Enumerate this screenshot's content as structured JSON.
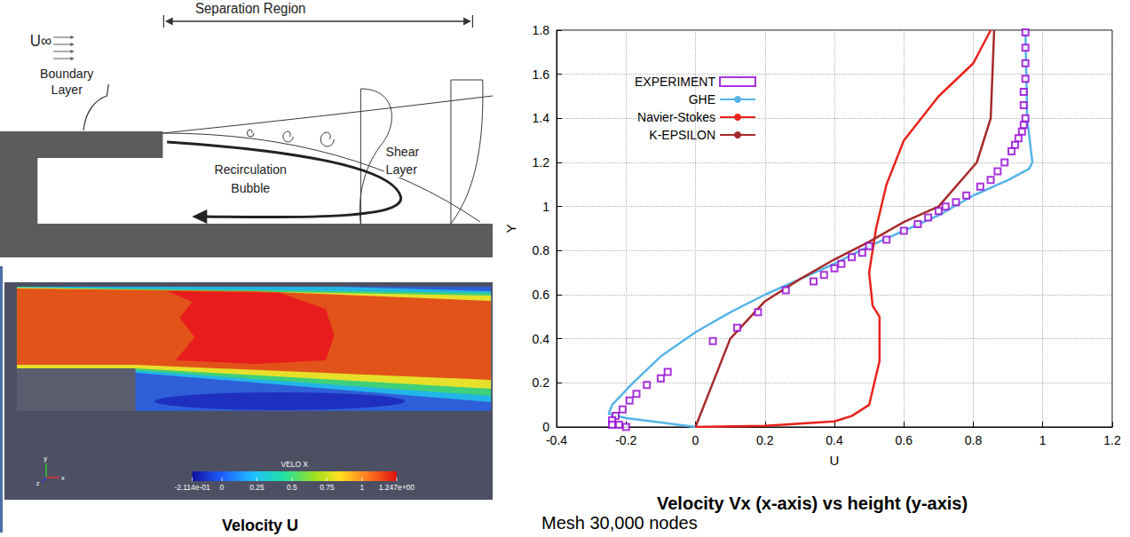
{
  "diagram": {
    "span": "Separation Region",
    "freestream": "U∞",
    "labels": {
      "boundary_layer": "Boundary Layer",
      "shear_layer": "Shear Layer",
      "bubble": "Recirculation Bubble"
    }
  },
  "contour": {
    "title": "VELO X",
    "axes": [
      "y",
      "z",
      "x"
    ],
    "caption": "Velocity U",
    "colorbar": {
      "range": [
        -0.2114,
        1.247
      ],
      "ticks": [
        {
          "value": -0.2114,
          "label": "-2.114e-01"
        },
        0,
        0.25,
        0.5,
        0.75,
        1,
        {
          "value": 1.247,
          "label": "1.247e+00"
        }
      ]
    }
  },
  "mesh_caption": "Mesh 30,000 nodes",
  "chart_data": {
    "type": "line",
    "title": "Velocity Vx (x-axis) vs height (y-axis)",
    "x_label": "U",
    "y_label": "Y",
    "xlim": [
      -0.4,
      1.2
    ],
    "xticks": [
      -0.4,
      -0.2,
      0,
      0.2,
      0.4,
      0.6,
      0.8,
      1,
      1.2
    ],
    "ylim": [
      0,
      1.8
    ],
    "yticks": [
      0,
      0.2,
      0.4,
      0.6,
      0.8,
      1,
      1.2,
      1.4,
      1.6,
      1.8
    ],
    "grid": true,
    "legend": "upper left",
    "series": [
      {
        "name": "EXPERIMENT",
        "type": "scatter",
        "marker": "square",
        "color": "#9400d3",
        "x": [
          0.95,
          0.95,
          0.95,
          0.95,
          0.945,
          0.945,
          0.95,
          0.945,
          0.94,
          0.93,
          0.92,
          0.91,
          0.89,
          0.87,
          0.85,
          0.82,
          0.78,
          0.75,
          0.72,
          0.7,
          0.67,
          0.64,
          0.6,
          0.55,
          0.5,
          0.48,
          0.45,
          0.42,
          0.4,
          0.37,
          0.34,
          0.26,
          0.18,
          0.12,
          0.05,
          -0.08,
          -0.1,
          -0.14,
          -0.17,
          -0.19,
          -0.21,
          -0.23,
          -0.24,
          -0.24,
          -0.22,
          -0.2
        ],
        "y": [
          1.79,
          1.72,
          1.65,
          1.58,
          1.52,
          1.46,
          1.4,
          1.37,
          1.34,
          1.31,
          1.28,
          1.25,
          1.2,
          1.16,
          1.12,
          1.09,
          1.05,
          1.02,
          1.0,
          0.98,
          0.95,
          0.92,
          0.89,
          0.85,
          0.82,
          0.79,
          0.77,
          0.74,
          0.72,
          0.69,
          0.66,
          0.62,
          0.52,
          0.45,
          0.39,
          0.25,
          0.22,
          0.19,
          0.15,
          0.12,
          0.08,
          0.05,
          0.03,
          0.01,
          0.01,
          0.0
        ]
      },
      {
        "name": "GHE",
        "type": "line",
        "line_style": "solid",
        "color": "#56b4e9",
        "x": [
          0.95,
          0.955,
          0.97,
          0.96,
          0.9,
          0.8,
          0.7,
          0.6,
          0.5,
          0.4,
          0.3,
          0.2,
          0.1,
          0.0,
          -0.1,
          -0.18,
          -0.24,
          -0.25,
          -0.2,
          -0.1,
          0.0
        ],
        "y": [
          1.8,
          1.4,
          1.2,
          1.17,
          1.12,
          1.05,
          0.96,
          0.89,
          0.82,
          0.74,
          0.67,
          0.6,
          0.52,
          0.43,
          0.32,
          0.2,
          0.1,
          0.06,
          0.04,
          0.02,
          0.0
        ]
      },
      {
        "name": "Navier-Stokes",
        "type": "line",
        "line_style": "solid",
        "color": "#e8221a",
        "x": [
          0.85,
          0.8,
          0.7,
          0.6,
          0.55,
          0.52,
          0.5,
          0.51,
          0.53,
          0.53,
          0.5,
          0.45,
          0.4,
          0.2,
          0.0
        ],
        "y": [
          1.8,
          1.65,
          1.5,
          1.3,
          1.1,
          0.9,
          0.7,
          0.55,
          0.5,
          0.3,
          0.1,
          0.05,
          0.025,
          0.005,
          0.0
        ]
      },
      {
        "name": "K-EPSILON",
        "type": "line",
        "line_style": "solid",
        "color": "#a52a2a",
        "x": [
          0.86,
          0.85,
          0.81,
          0.7,
          0.6,
          0.5,
          0.4,
          0.3,
          0.2,
          0.1,
          0.05,
          0.0
        ],
        "y": [
          1.8,
          1.4,
          1.2,
          1.0,
          0.93,
          0.84,
          0.76,
          0.67,
          0.57,
          0.4,
          0.2,
          0.0
        ]
      }
    ]
  }
}
